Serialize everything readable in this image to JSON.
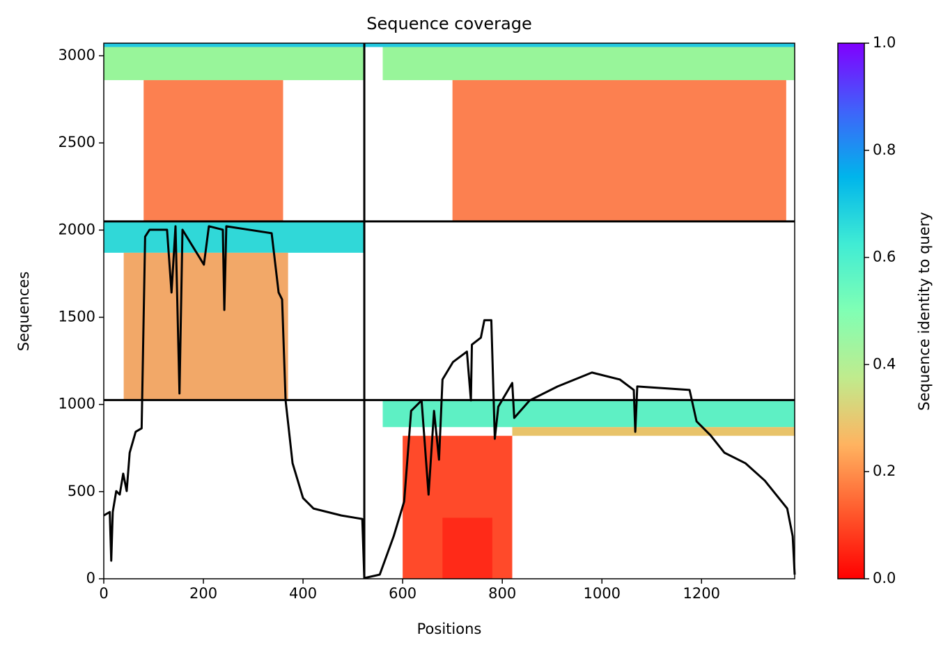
{
  "chart_data": {
    "type": "coverage",
    "title": "Sequence coverage",
    "x_label": "Positions",
    "y_label": "Sequences",
    "xlim": [
      0,
      1387
    ],
    "ylim": [
      0,
      3072
    ],
    "xticks": [
      0,
      200,
      400,
      600,
      800,
      1000,
      1200
    ],
    "yticks": [
      0,
      500,
      1000,
      1500,
      2000,
      2500,
      3000
    ],
    "dividers_x": [
      523
    ],
    "dividers_y": [
      1025,
      2050
    ],
    "blocks": [
      {
        "x": [
          0,
          523
        ],
        "y": [
          2860,
          3050
        ],
        "color": "#98f59a"
      },
      {
        "x": [
          0,
          523
        ],
        "y": [
          3050,
          3072
        ],
        "color": "#22c8e0"
      },
      {
        "x": [
          80,
          360
        ],
        "y": [
          2050,
          2860
        ],
        "color": "#fc8050"
      },
      {
        "x": [
          560,
          1387
        ],
        "y": [
          2860,
          3050
        ],
        "color": "#98f59a"
      },
      {
        "x": [
          523,
          1387
        ],
        "y": [
          3050,
          3072
        ],
        "color": "#22c8e0"
      },
      {
        "x": [
          700,
          1370
        ],
        "y": [
          2050,
          2860
        ],
        "color": "#fc8050"
      },
      {
        "x": [
          0,
          523
        ],
        "y": [
          1870,
          2050
        ],
        "color": "#30d8d8"
      },
      {
        "x": [
          40,
          370
        ],
        "y": [
          1025,
          1870
        ],
        "color": "#f2a868"
      },
      {
        "x": [
          560,
          1387
        ],
        "y": [
          870,
          1025
        ],
        "color": "#5ef0c4"
      },
      {
        "x": [
          820,
          1387
        ],
        "y": [
          820,
          870
        ],
        "color": "#e8c36a"
      },
      {
        "x": [
          600,
          820
        ],
        "y": [
          0,
          820
        ],
        "color": "#ff4a2a"
      },
      {
        "x": [
          680,
          780
        ],
        "y": [
          0,
          350
        ],
        "color": "#ff2a18"
      }
    ],
    "coverage": {
      "color": "#000000",
      "x": [
        0,
        12,
        15,
        18,
        25,
        32,
        39,
        46,
        52,
        64,
        76,
        83,
        92,
        127,
        136,
        144,
        152,
        158,
        201,
        211,
        239,
        242,
        246,
        337,
        351,
        358,
        365,
        379,
        400,
        421,
        477,
        519,
        523,
        554,
        582,
        603,
        617,
        638,
        652,
        663,
        673,
        680,
        701,
        729,
        737,
        739,
        757,
        764,
        778,
        785,
        792,
        820,
        824,
        855,
        911,
        980,
        1036,
        1064,
        1067,
        1071,
        1176,
        1190,
        1218,
        1246,
        1288,
        1327,
        1372,
        1383,
        1387
      ],
      "values": [
        363,
        383,
        104,
        383,
        503,
        483,
        603,
        503,
        723,
        843,
        863,
        1962,
        2002,
        2002,
        1642,
        2022,
        1063,
        2002,
        1802,
        2022,
        2002,
        1542,
        2022,
        1982,
        1642,
        1602,
        1023,
        663,
        463,
        403,
        363,
        343,
        4,
        24,
        244,
        443,
        963,
        1023,
        483,
        963,
        683,
        1143,
        1243,
        1303,
        1023,
        1343,
        1383,
        1483,
        1483,
        803,
        987,
        1123,
        923,
        1023,
        1103,
        1183,
        1143,
        1083,
        843,
        1103,
        1083,
        903,
        823,
        723,
        663,
        563,
        403,
        244,
        24
      ]
    },
    "colorbar": {
      "label": "Sequence identity to query",
      "lim": [
        0,
        1
      ],
      "ticks": [
        {
          "value": 0,
          "label": "0.0"
        },
        {
          "value": 0.2,
          "label": "0.2"
        },
        {
          "value": 0.4,
          "label": "0.4"
        },
        {
          "value": 0.6,
          "label": "0.6"
        },
        {
          "value": 0.8,
          "label": "0.8"
        },
        {
          "value": 1,
          "label": "1.0"
        }
      ]
    }
  }
}
